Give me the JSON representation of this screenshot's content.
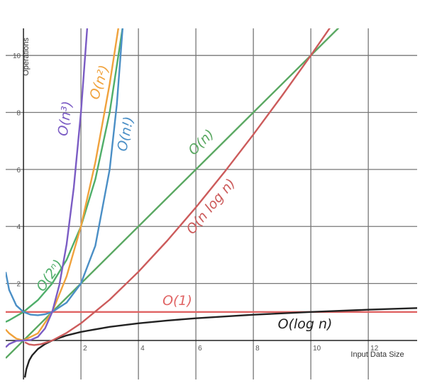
{
  "chart_data": {
    "type": "line",
    "x_label": "Input Data Size",
    "y_label": "Operations",
    "xlim": [
      -0.62,
      13.7
    ],
    "ylim": [
      -1.37,
      10.95
    ],
    "xticks": [
      2,
      4,
      6,
      8,
      10,
      12
    ],
    "yticks": [
      2,
      4,
      6,
      8,
      10
    ],
    "grid": true,
    "series": [
      {
        "name": "O(1)",
        "color": "#e06464",
        "x": [
          -0.62,
          13.7
        ],
        "values": [
          1,
          1
        ]
      },
      {
        "name": "O(log n)",
        "color": "#222222",
        "x": [
          0.05,
          0.1,
          0.2,
          0.3,
          0.5,
          0.75,
          1,
          1.5,
          2,
          3,
          4,
          5,
          6,
          8,
          10,
          12,
          13.7
        ],
        "values": [
          -1.301,
          -1,
          -0.699,
          -0.523,
          -0.301,
          -0.125,
          0,
          0.176,
          0.301,
          0.477,
          0.602,
          0.699,
          0.778,
          0.903,
          1,
          1.079,
          1.137
        ]
      },
      {
        "name": "O(n)",
        "color": "#5aa862",
        "x": [
          -0.62,
          11.5
        ],
        "values": [
          -0.62,
          11.5
        ]
      },
      {
        "name": "O(n log n)",
        "color": "#cc5b5b",
        "x": [
          0.05,
          0.2,
          0.37,
          0.6,
          1,
          1.5,
          2,
          3,
          4,
          5,
          6,
          7,
          8,
          9,
          10,
          11,
          12
        ],
        "values": [
          -0.065,
          -0.14,
          -0.16,
          -0.133,
          0,
          0.264,
          0.602,
          1.431,
          2.408,
          3.495,
          4.669,
          5.916,
          7.225,
          8.588,
          10,
          11.455,
          12.95
        ]
      },
      {
        "name": "O(2ⁿ)",
        "color": "#4fae6a",
        "x": [
          -0.62,
          -0.5,
          0,
          0.5,
          1,
          1.5,
          2,
          2.5,
          3,
          3.5
        ],
        "values": [
          0.651,
          0.707,
          1,
          1.414,
          2,
          2.828,
          4,
          5.657,
          8,
          11.31
        ]
      },
      {
        "name": "O(n²)",
        "color": "#f0a23c",
        "x": [
          -0.62,
          -0.5,
          -0.25,
          0,
          0.5,
          1,
          1.5,
          2,
          2.5,
          3,
          3.5
        ],
        "values": [
          0.384,
          0.25,
          0.0625,
          0,
          0.25,
          1,
          2.25,
          4,
          6.25,
          9,
          12.25
        ]
      },
      {
        "name": "O(n!)",
        "color": "#4b8fc6",
        "x": [
          -0.62,
          -0.5,
          -0.25,
          0,
          0.25,
          0.5,
          0.75,
          1,
          1.5,
          2,
          2.5,
          3,
          3.25,
          3.5
        ],
        "values": [
          2.4,
          1.772,
          1.225,
          1,
          0.906,
          0.886,
          0.919,
          1,
          1.329,
          2,
          3.323,
          6,
          8.285,
          11.63
        ]
      },
      {
        "name": "O(n³)",
        "color": "#7b5cc4",
        "x": [
          -0.62,
          -0.5,
          -0.25,
          0,
          0.25,
          0.5,
          0.75,
          1,
          1.25,
          1.5,
          1.75,
          2,
          2.25
        ],
        "values": [
          -0.238,
          -0.125,
          -0.016,
          0,
          0.016,
          0.125,
          0.422,
          1,
          1.953,
          3.375,
          5.359,
          8,
          11.39
        ]
      }
    ]
  }
}
